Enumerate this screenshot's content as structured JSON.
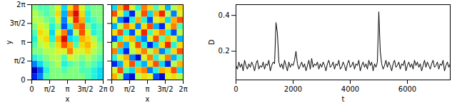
{
  "chart_data": [
    {
      "type": "heatmap",
      "xlabel": "x",
      "ylabel": "y",
      "xlim": [
        0,
        6.2832
      ],
      "ylim": [
        0,
        6.2832
      ],
      "xticks": [
        {
          "value": 0,
          "label": "0"
        },
        {
          "value": 1.5708,
          "label": "π/2"
        },
        {
          "value": 3.1416,
          "label": "π"
        },
        {
          "value": 4.7124,
          "label": "3π/2"
        },
        {
          "value": 6.2832,
          "label": "2π"
        }
      ],
      "yticks": [
        {
          "value": 0,
          "label": "0"
        },
        {
          "value": 1.5708,
          "label": "π/2"
        },
        {
          "value": 3.1416,
          "label": "π"
        },
        {
          "value": 4.7124,
          "label": "3π/2"
        },
        {
          "value": 6.2832,
          "label": "2π"
        }
      ],
      "zlim": [
        -1,
        1
      ],
      "cells": [
        [
          0,
          -0.1,
          -0.1,
          0,
          0.2,
          -0.3,
          0.3,
          0.6,
          0.2,
          -0.1,
          0,
          0
        ],
        [
          0.1,
          0,
          -0.1,
          0,
          0.3,
          -0.4,
          0.5,
          0.8,
          0.3,
          -0.2,
          0,
          0
        ],
        [
          0.1,
          0.1,
          0,
          -0.1,
          0.2,
          -0.5,
          0.2,
          0.7,
          0.4,
          -0.2,
          -0.1,
          0
        ],
        [
          0,
          0.2,
          0.1,
          -0.2,
          0,
          -0.6,
          -0.2,
          0.5,
          0.6,
          0,
          -0.2,
          -0.1
        ],
        [
          -0.1,
          0.3,
          0.2,
          -0.3,
          0.2,
          0.5,
          -0.5,
          0.1,
          0.6,
          0.2,
          -0.2,
          -0.1
        ],
        [
          -0.2,
          0.2,
          0.3,
          -0.2,
          0.4,
          0.8,
          -0.3,
          -0.2,
          0.4,
          0.3,
          0.1,
          -0.1
        ],
        [
          -0.1,
          0.1,
          0.2,
          0,
          0.3,
          0.6,
          0.4,
          -0.1,
          0.3,
          0.4,
          0.2,
          0
        ],
        [
          0,
          0,
          0.1,
          0.1,
          0.2,
          0.2,
          0.5,
          0.2,
          0.2,
          0.3,
          0.1,
          0
        ],
        [
          -0.2,
          -0.1,
          0,
          0.1,
          0.1,
          -0.1,
          0.2,
          0.1,
          0,
          0.1,
          0,
          -0.1
        ],
        [
          -0.5,
          -0.3,
          -0.1,
          0,
          0.1,
          -0.2,
          -0.1,
          0,
          -0.1,
          0,
          -0.1,
          -0.2
        ],
        [
          -0.9,
          -0.6,
          -0.2,
          0,
          0,
          -0.1,
          0,
          0,
          -0.1,
          -0.1,
          -0.2,
          -0.3
        ],
        [
          -0.7,
          -0.5,
          -0.1,
          0,
          0,
          0,
          0,
          0,
          0,
          -0.1,
          -0.2,
          -0.3
        ]
      ]
    },
    {
      "type": "heatmap",
      "xlabel": "x",
      "tick_labels": "x",
      "xlim": [
        0,
        6.2832
      ],
      "ylim": [
        0,
        6.2832
      ],
      "xticks": [
        {
          "value": 0,
          "label": "0"
        },
        {
          "value": 1.5708,
          "label": "π/2"
        },
        {
          "value": 3.1416,
          "label": "π"
        },
        {
          "value": 4.7124,
          "label": "3π/2"
        },
        {
          "value": 6.2832,
          "label": "2π"
        }
      ],
      "yticks": [
        0,
        1.5708,
        3.1416,
        4.7124,
        6.2832
      ],
      "zlim": [
        -1,
        1
      ],
      "cells": [
        [
          -0.3,
          0.4,
          0.7,
          0.2,
          -0.2,
          0.5,
          0.3,
          -0.1,
          0.2,
          -0.4,
          0.1,
          0.3
        ],
        [
          0.6,
          0.2,
          -0.3,
          -0.7,
          0.1,
          0.6,
          -0.3,
          0.4,
          0.7,
          0.1,
          -0.5,
          0.2
        ],
        [
          0.2,
          -0.5,
          -0.8,
          -0.2,
          0.4,
          -0.2,
          -0.6,
          0.2,
          0.3,
          -0.3,
          0.4,
          0.6
        ],
        [
          -0.4,
          0.1,
          0.5,
          0.3,
          -0.5,
          0.3,
          0.6,
          -0.4,
          -0.7,
          0.2,
          0.5,
          -0.1
        ],
        [
          0.3,
          0.6,
          -0.2,
          -0.6,
          0.2,
          0.7,
          -0.1,
          0.3,
          0.5,
          -0.2,
          -0.6,
          0.1
        ],
        [
          -0.6,
          -0.2,
          0.3,
          0.4,
          -0.3,
          -0.5,
          0.2,
          0.6,
          -0.1,
          0.4,
          0.2,
          -0.4
        ],
        [
          0.1,
          0.5,
          -0.4,
          0.2,
          0.6,
          -0.2,
          -0.7,
          -0.3,
          0.3,
          0.7,
          -0.2,
          0.3
        ],
        [
          0.5,
          -0.3,
          -0.7,
          0.1,
          0.3,
          0.5,
          0.1,
          0.4,
          -0.5,
          -0.2,
          0.3,
          0.6
        ],
        [
          -0.2,
          0.2,
          0.4,
          -0.5,
          -0.8,
          0.2,
          0.5,
          -0.2,
          0.2,
          0.5,
          -0.4,
          -0.1
        ],
        [
          -0.7,
          -0.4,
          0.3,
          0.6,
          -0.2,
          -0.4,
          0.3,
          0.6,
          -0.3,
          -0.7,
          0.1,
          0.4
        ],
        [
          0.2,
          0.6,
          -0.1,
          -0.3,
          0.4,
          0.5,
          -0.5,
          -0.2,
          0.4,
          0.3,
          0.6,
          -0.3
        ],
        [
          0.4,
          0.1,
          -0.6,
          -0.8,
          0.1,
          0.3,
          0.2,
          -0.6,
          -0.8,
          0.2,
          0.3,
          0.1
        ]
      ]
    },
    {
      "type": "line",
      "xlabel": "t",
      "ylabel": "D",
      "color": "#000000",
      "xlim": [
        0,
        7500
      ],
      "xticks": [
        0,
        2000,
        4000,
        6000
      ],
      "ylim": [
        0.04,
        0.46
      ],
      "yticks": [
        0.2,
        0.4
      ],
      "x": [
        0,
        50,
        100,
        150,
        200,
        250,
        300,
        350,
        400,
        450,
        500,
        550,
        600,
        650,
        700,
        750,
        800,
        850,
        900,
        950,
        1000,
        1050,
        1100,
        1150,
        1200,
        1250,
        1300,
        1350,
        1400,
        1450,
        1500,
        1550,
        1600,
        1650,
        1700,
        1750,
        1800,
        1850,
        1900,
        1950,
        2000,
        2050,
        2100,
        2150,
        2200,
        2250,
        2300,
        2350,
        2400,
        2450,
        2500,
        2550,
        2600,
        2650,
        2700,
        2750,
        2800,
        2850,
        2900,
        2950,
        3000,
        3050,
        3100,
        3150,
        3200,
        3250,
        3300,
        3350,
        3400,
        3450,
        3500,
        3550,
        3600,
        3650,
        3700,
        3750,
        3800,
        3850,
        3900,
        3950,
        4000,
        4050,
        4100,
        4150,
        4200,
        4250,
        4300,
        4350,
        4400,
        4450,
        4500,
        4550,
        4600,
        4650,
        4700,
        4750,
        4800,
        4850,
        4900,
        4950,
        5000,
        5050,
        5100,
        5150,
        5200,
        5250,
        5300,
        5350,
        5400,
        5450,
        5500,
        5550,
        5600,
        5650,
        5700,
        5750,
        5800,
        5850,
        5900,
        5950,
        6000,
        6050,
        6100,
        6150,
        6200,
        6250,
        6300,
        6350,
        6400,
        6450,
        6500,
        6550,
        6600,
        6650,
        6700,
        6750,
        6800,
        6850,
        6900,
        6950,
        7000,
        7050,
        7100,
        7150,
        7200,
        7250,
        7300,
        7350,
        7400,
        7450,
        7500
      ],
      "values": [
        0.12,
        0.1,
        0.14,
        0.11,
        0.13,
        0.09,
        0.15,
        0.12,
        0.1,
        0.13,
        0.11,
        0.14,
        0.12,
        0.09,
        0.13,
        0.15,
        0.1,
        0.12,
        0.11,
        0.14,
        0.1,
        0.13,
        0.12,
        0.15,
        0.09,
        0.12,
        0.14,
        0.13,
        0.36,
        0.3,
        0.14,
        0.11,
        0.13,
        0.1,
        0.15,
        0.12,
        0.09,
        0.14,
        0.11,
        0.13,
        0.12,
        0.15,
        0.2,
        0.13,
        0.1,
        0.12,
        0.14,
        0.11,
        0.13,
        0.09,
        0.12,
        0.15,
        0.1,
        0.16,
        0.11,
        0.13,
        0.12,
        0.14,
        0.1,
        0.13,
        0.11,
        0.14,
        0.12,
        0.09,
        0.13,
        0.15,
        0.11,
        0.12,
        0.14,
        0.1,
        0.13,
        0.12,
        0.15,
        0.1,
        0.11,
        0.14,
        0.12,
        0.09,
        0.13,
        0.15,
        0.11,
        0.12,
        0.14,
        0.1,
        0.13,
        0.12,
        0.15,
        0.09,
        0.12,
        0.14,
        0.11,
        0.13,
        0.1,
        0.15,
        0.12,
        0.14,
        0.09,
        0.13,
        0.11,
        0.14,
        0.42,
        0.2,
        0.13,
        0.1,
        0.12,
        0.15,
        0.11,
        0.14,
        0.12,
        0.09,
        0.13,
        0.15,
        0.11,
        0.12,
        0.14,
        0.1,
        0.13,
        0.12,
        0.15,
        0.09,
        0.12,
        0.14,
        0.11,
        0.13,
        0.1,
        0.15,
        0.12,
        0.14,
        0.11,
        0.13,
        0.09,
        0.12,
        0.15,
        0.11,
        0.14,
        0.12,
        0.1,
        0.13,
        0.15,
        0.11,
        0.12,
        0.14,
        0.1,
        0.13,
        0.12,
        0.15,
        0.09,
        0.12,
        0.14,
        0.11,
        0.13
      ]
    }
  ]
}
